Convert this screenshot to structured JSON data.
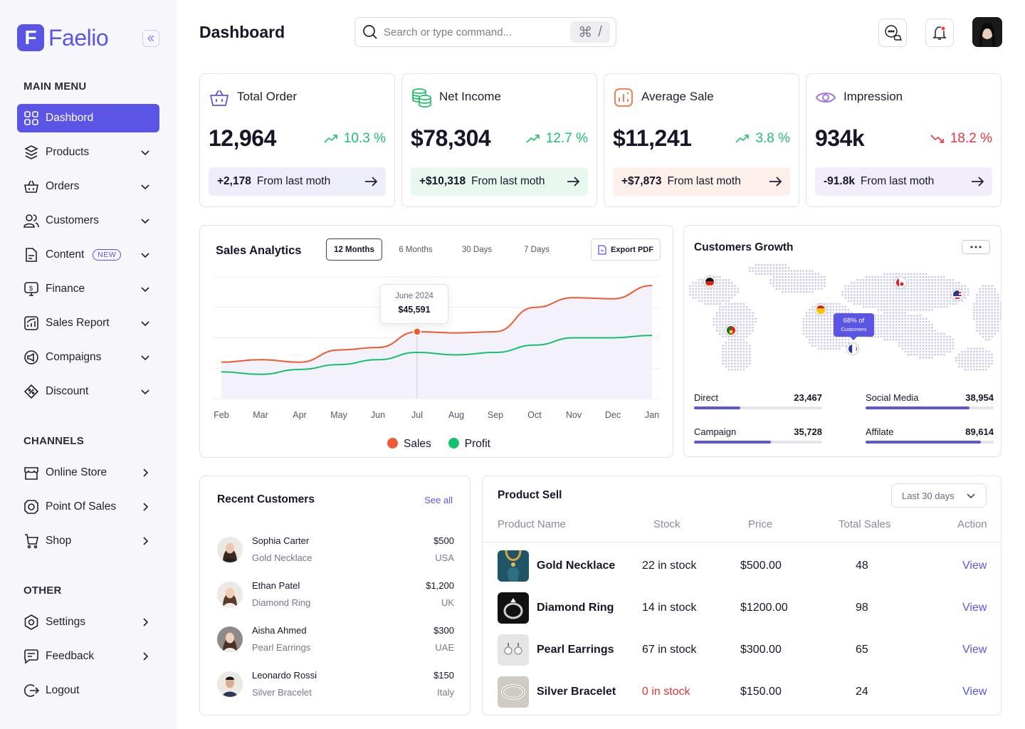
{
  "app": {
    "brand_letter": "F",
    "brand_name": "Faelio"
  },
  "sidebar": {
    "main_menu_label": "MAIN MENU",
    "main_items": [
      {
        "label": "Dashbord",
        "icon": "grid-icon",
        "active": true
      },
      {
        "label": "Products",
        "icon": "box-icon"
      },
      {
        "label": "Orders",
        "icon": "basket-icon"
      },
      {
        "label": "Customers",
        "icon": "users-icon"
      },
      {
        "label": "Content",
        "icon": "document-icon",
        "badge": "NEW"
      },
      {
        "label": "Finance",
        "icon": "monitor-dollar-icon"
      },
      {
        "label": "Sales Report",
        "icon": "chart-icon"
      },
      {
        "label": "Compaigns",
        "icon": "megaphone-icon"
      },
      {
        "label": "Discount",
        "icon": "tag-icon"
      }
    ],
    "channels_label": "CHANNELS",
    "channel_items": [
      {
        "label": "Online Store",
        "icon": "store-icon"
      },
      {
        "label": "Point Of Sales",
        "icon": "pos-icon"
      },
      {
        "label": "Shop",
        "icon": "cart-icon"
      }
    ],
    "other_label": "OTHER",
    "other_items": [
      {
        "label": "Settings",
        "icon": "gear-icon"
      },
      {
        "label": "Feedback",
        "icon": "chat-icon"
      },
      {
        "label": "Logout",
        "icon": "logout-icon"
      }
    ]
  },
  "header": {
    "title": "Dashboard",
    "search_placeholder": "Search or type command...",
    "shortcut_symbol": "⌘",
    "shortcut_key": "/"
  },
  "stats": [
    {
      "title": "Total Order",
      "value": "12,964",
      "change": "10.3 %",
      "trend": "up",
      "foot_value": "+2,178",
      "foot_text": "From last moth",
      "color": "#5b55e6",
      "foot_bg": "#eeeefb"
    },
    {
      "title": "Net Income",
      "value": "$78,304",
      "change": "12.7 %",
      "trend": "up",
      "foot_value": "+$10,318",
      "foot_text": "From last moth",
      "color": "#1fbf6b",
      "foot_bg": "#e8f8ee"
    },
    {
      "title": "Average Sale",
      "value": "$11,241",
      "change": "3.8 %",
      "trend": "up",
      "foot_value": "+$7,873",
      "foot_text": "From last moth",
      "color": "#f27149",
      "foot_bg": "#fdefea"
    },
    {
      "title": "Impression",
      "value": "934k",
      "change": "18.2 %",
      "trend": "down",
      "foot_value": "-91.8k",
      "foot_text": "From last moth",
      "color": "#9b6be0",
      "foot_bg": "#f2ecfb"
    }
  ],
  "sales_analytics": {
    "title": "Sales Analytics",
    "tabs": [
      "12 Months",
      "6 Months",
      "30 Days",
      "7 Days"
    ],
    "active_tab": "12 Months",
    "export_label": "Export PDF",
    "tooltip": {
      "label": "June 2024",
      "value": "$45,591"
    }
  },
  "chart_data": {
    "type": "line",
    "categories": [
      "Feb",
      "Mar",
      "Apr",
      "May",
      "Jun",
      "Jul",
      "Aug",
      "Sep",
      "Oct",
      "Nov",
      "Dec",
      "Jan"
    ],
    "series": [
      {
        "name": "Sales",
        "color": "#f05a32",
        "values": [
          30,
          32,
          30,
          40,
          42,
          55,
          54,
          55,
          75,
          83,
          82,
          93
        ]
      },
      {
        "name": "Profit",
        "color": "#14c06a",
        "values": [
          22,
          20,
          24,
          28,
          32,
          38,
          36,
          38,
          44,
          50,
          50,
          52
        ]
      }
    ],
    "highlight": {
      "category": "Jul",
      "series": "Sales"
    },
    "grid": true
  },
  "customers_growth": {
    "title": "Customers Growth",
    "map_tooltip_value": "68% of",
    "map_tooltip_label": "Customers",
    "metrics": [
      {
        "label": "Direct",
        "value": "23,467",
        "fill": 0.36
      },
      {
        "label": "Social Media",
        "value": "38,954",
        "fill": 0.81
      },
      {
        "label": "Campaign",
        "value": "35,728",
        "fill": 0.6
      },
      {
        "label": "Affilate",
        "value": "89,614",
        "fill": 0.9
      }
    ]
  },
  "recent_customers": {
    "title": "Recent Customers",
    "see_all": "See all",
    "rows": [
      {
        "name": "Sophia Carter",
        "product": "Gold Necklace",
        "amount": "$500",
        "country": "USA"
      },
      {
        "name": "Ethan Patel",
        "product": "Diamond Ring",
        "amount": "$1,200",
        "country": "UK"
      },
      {
        "name": "Aisha Ahmed",
        "product": "Pearl Earrings",
        "amount": "$300",
        "country": "UAE"
      },
      {
        "name": "Leonardo Rossi",
        "product": "Silver Bracelet",
        "amount": "$150",
        "country": "Italy"
      }
    ]
  },
  "product_sell": {
    "title": "Product Sell",
    "range": "Last 30 days",
    "columns": [
      "Product Name",
      "Stock",
      "Price",
      "Total Sales",
      "Action"
    ],
    "rows": [
      {
        "name": "Gold Necklace",
        "stock": "22 in stock",
        "price": "$500.00",
        "sales": "48",
        "action": "View",
        "out": false
      },
      {
        "name": "Diamond Ring",
        "stock": "14 in stock",
        "price": "$1200.00",
        "sales": "98",
        "action": "View",
        "out": false
      },
      {
        "name": "Pearl Earrings",
        "stock": "67 in stock",
        "price": "$300.00",
        "sales": "65",
        "action": "View",
        "out": false
      },
      {
        "name": "Silver Bracelet",
        "stock": "0 in stock",
        "price": "$150.00",
        "sales": "24",
        "action": "View",
        "out": true
      }
    ]
  }
}
